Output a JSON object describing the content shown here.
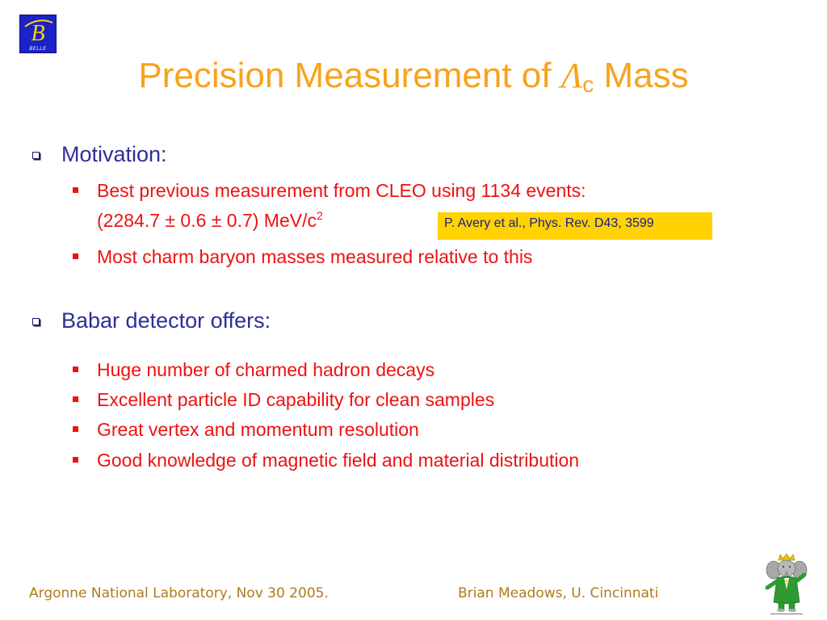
{
  "logo": {
    "letter": "B",
    "label": "BELLE"
  },
  "title": {
    "prefix": "Precision Measurement of ",
    "symbol": "Λ",
    "subscript": "c",
    "suffix": " Mass"
  },
  "sections": [
    {
      "heading": "Motivation:",
      "bullets": [
        "Best previous measurement from CLEO using 1134 events:",
        "Most charm baryon masses measured relative to this"
      ],
      "continuation": {
        "text": "(2284.7 ± 0.6 ± 0.7) MeV/c",
        "superscript": "2"
      },
      "reference": "P. Avery et al., Phys. Rev. D43, 3599"
    },
    {
      "heading": "Babar detector offers:",
      "bullets": [
        "Huge number of charmed hadron decays",
        "Excellent particle ID capability for clean samples",
        "Great vertex and momentum resolution",
        "Good knowledge of magnetic field and material distribution"
      ]
    }
  ],
  "footer": {
    "left": "Argonne National Laboratory, Nov 30 2005.",
    "right": "Brian Meadows, U. Cincinnati"
  },
  "colors": {
    "title": "#f7a31c",
    "heading": "#2e2e9a",
    "bullet_text": "#ee1111",
    "reference_bg": "#ffd200",
    "footer": "#b07a1a",
    "logo_bg": "#1a22c8"
  }
}
